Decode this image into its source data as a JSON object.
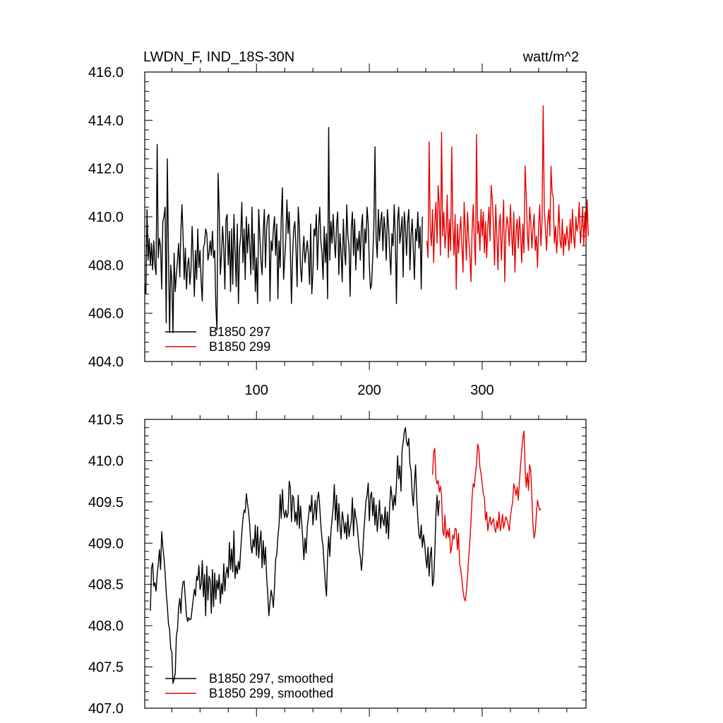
{
  "chart_data": [
    {
      "type": "line",
      "title": "LWDN_F, IND_18S-30N",
      "units": "watt/m^2",
      "xlim": [
        1,
        392
      ],
      "ylim": [
        404.0,
        416.0
      ],
      "xticks": [
        100,
        200,
        300
      ],
      "yticks": [
        "404.0",
        "406.0",
        "408.0",
        "410.0",
        "412.0",
        "414.0",
        "416.0"
      ],
      "legend_position": "bottom-left",
      "series": [
        {
          "name": "B1850 297",
          "color": "#000000",
          "x_start": 1,
          "values": [
            407.2,
            406.8,
            410.3,
            408.2,
            409.1,
            408.0,
            408.9,
            407.8,
            409.0,
            408.0,
            407.6,
            413.0,
            408.3,
            409.1,
            408.8,
            407.0,
            409.8,
            410.0,
            410.4,
            405.6,
            412.4,
            408.5,
            405.2,
            408.0,
            407.3,
            405.2,
            408.5,
            406.9,
            407.6,
            408.2,
            408.9,
            407.5,
            409.4,
            410.5,
            409.2,
            407.4,
            408.7,
            407.0,
            408.0,
            408.3,
            407.2,
            407.8,
            409.6,
            408.3,
            406.7,
            408.6,
            407.4,
            409.5,
            407.9,
            408.6,
            407.3,
            406.5,
            408.7,
            408.9,
            409.5,
            409.3,
            408.2,
            408.5,
            409.0,
            408.4,
            409.4,
            408.3,
            408.6,
            406.3,
            405.3,
            411.8,
            410.2,
            407.6,
            408.4,
            409.6,
            408.7,
            407.0,
            409.9,
            410.1,
            408.0,
            409.4,
            406.9,
            409.5,
            407.2,
            410.1,
            408.6,
            407.1,
            409.7,
            406.4,
            408.7,
            409.2,
            410.6,
            408.1,
            409.5,
            407.4,
            410.0,
            408.5,
            409.7,
            408.8,
            407.6,
            410.4,
            407.8,
            409.3,
            406.9,
            408.3,
            406.4,
            410.3,
            409.2,
            408.2,
            407.6,
            409.4,
            410.3,
            407.9,
            409.5,
            410.0,
            410.1,
            406.5,
            409.0,
            408.6,
            409.5,
            410.0,
            408.4,
            409.7,
            406.6,
            409.0,
            407.9,
            410.0,
            411.2,
            407.4,
            408.2,
            409.1,
            410.7,
            409.3,
            410.2,
            408.6,
            406.4,
            408.4,
            409.5,
            409.8,
            408.7,
            407.1,
            410.4,
            409.6,
            407.9,
            407.3,
            408.5,
            409.2,
            408.1,
            408.6,
            409.0,
            408.4,
            407.2,
            409.7,
            406.8,
            407.7,
            409.5,
            409.2,
            410.1,
            407.8,
            409.5,
            410.4,
            409.0,
            408.5,
            407.4,
            409.6,
            408.1,
            409.3,
            406.6,
            413.7,
            408.2,
            409.8,
            408.9,
            410.1,
            409.0,
            408.3,
            409.7,
            410.2,
            407.6,
            409.3,
            408.5,
            407.3,
            409.9,
            408.6,
            408.0,
            410.5,
            409.2,
            408.8,
            406.7,
            409.5,
            410.2,
            408.4,
            409.9,
            407.8,
            409.1,
            408.6,
            409.4,
            408.2,
            409.6,
            410.1,
            407.4,
            409.5,
            408.9,
            410.4,
            409.7,
            408.0,
            407.0,
            407.2,
            408.3,
            409.6,
            412.9,
            409.1,
            408.3,
            410.3,
            409.0,
            409.8,
            410.2,
            408.6,
            410.0,
            409.4,
            408.2,
            410.3,
            409.6,
            408.5,
            407.6,
            409.3,
            408.8,
            410.5,
            409.1,
            406.4,
            409.8,
            410.4,
            408.9,
            409.4,
            410.0,
            407.5,
            410.2,
            409.6,
            408.4,
            409.8,
            410.3,
            407.8,
            409.2,
            409.9,
            408.6,
            407.4,
            409.5,
            409.0,
            410.2,
            408.7,
            409.6,
            407.0,
            410.0
          ],
          "name_short": "B1850 297"
        },
        {
          "name": "B1850 299",
          "color": "#e60000",
          "x_start": 251,
          "values": [
            409.0,
            408.3,
            413.1,
            409.5,
            408.8,
            410.3,
            408.1,
            409.7,
            410.6,
            408.9,
            411.3,
            410.5,
            408.4,
            413.5,
            409.2,
            410.2,
            408.7,
            409.4,
            410.9,
            408.3,
            409.9,
            408.6,
            412.9,
            409.6,
            408.4,
            410.1,
            407.0,
            409.7,
            408.5,
            409.3,
            410.0,
            408.8,
            407.7,
            410.6,
            409.4,
            408.2,
            410.2,
            409.1,
            408.5,
            407.3,
            409.4,
            410.5,
            409.0,
            408.0,
            413.4,
            409.3,
            409.8,
            408.6,
            410.3,
            409.2,
            410.2,
            408.5,
            409.8,
            408.3,
            409.6,
            410.4,
            409.0,
            411.3,
            410.7,
            409.6,
            408.0,
            410.5,
            409.2,
            407.8,
            409.6,
            410.1,
            408.2,
            409.4,
            410.7,
            407.3,
            409.4,
            410.0,
            409.6,
            408.8,
            410.5,
            409.3,
            408.4,
            410.2,
            407.7,
            409.4,
            409.9,
            408.7,
            410.0,
            409.3,
            408.1,
            409.7,
            408.5,
            412.1,
            410.9,
            409.3,
            408.6,
            410.4,
            409.8,
            408.7,
            409.5,
            410.1,
            408.6,
            409.2,
            407.9,
            409.6,
            410.5,
            408.8,
            409.8,
            414.6,
            410.3,
            409.5,
            408.6,
            409.8,
            410.3,
            409.2,
            412.1,
            411.0,
            410.8,
            408.9,
            409.6,
            408.5,
            409.3,
            410.5,
            409.0,
            408.7,
            409.9,
            408.4,
            409.3,
            408.8,
            409.6,
            409.1,
            408.6,
            409.9,
            408.9,
            410.3,
            409.2,
            408.7,
            410.0,
            409.4,
            409.7,
            410.6,
            408.9,
            409.5,
            410.4,
            408.8,
            410.2,
            409.0,
            410.7,
            409.2
          ]
        }
      ]
    },
    {
      "type": "line",
      "title": "",
      "xlim": [
        1,
        392
      ],
      "ylim": [
        407.0,
        410.5
      ],
      "xticks": [
        100,
        200,
        300
      ],
      "yticks": [
        "407.0",
        "407.5",
        "408.0",
        "408.5",
        "409.0",
        "409.5",
        "410.0",
        "410.5"
      ],
      "legend_position": "bottom-left",
      "series": [
        {
          "name": "B1850 297, smoothed",
          "color": "#000000",
          "x_start": 6,
          "values": [
            408.18,
            408.7,
            408.76,
            408.48,
            408.52,
            408.42,
            408.62,
            408.75,
            408.92,
            408.68,
            409.14,
            408.95,
            408.82,
            408.65,
            408.4,
            408.24,
            408.02,
            407.95,
            407.72,
            407.68,
            407.3,
            407.35,
            407.42,
            407.88,
            407.96,
            408.22,
            408.33,
            408.15,
            408.42,
            408.53,
            408.54,
            408.32,
            408.12,
            408.05,
            408.1,
            408.07,
            408.08,
            408.2,
            408.32,
            408.44,
            408.36,
            408.6,
            408.55,
            408.73,
            408.44,
            408.5,
            408.79,
            408.35,
            408.62,
            408.12,
            408.72,
            408.31,
            408.6,
            408.55,
            408.15,
            408.68,
            408.23,
            408.64,
            408.32,
            408.55,
            408.44,
            408.62,
            408.27,
            408.51,
            408.38,
            408.75,
            408.42,
            408.63,
            408.71,
            408.58,
            409.01,
            408.68,
            408.93,
            408.65,
            409.15,
            408.57,
            408.73,
            408.63,
            408.78,
            408.68,
            408.92,
            409.12,
            409.3,
            409.4,
            409.37,
            409.6,
            409.48,
            409.38,
            409.22,
            408.98,
            408.88,
            409.05,
            408.95,
            409.22,
            408.85,
            409.2,
            408.82,
            409.02,
            409.15,
            408.7,
            409.03,
            408.74,
            408.95,
            408.6,
            408.38,
            408.12,
            408.28,
            408.43,
            408.35,
            408.22,
            408.48,
            408.81,
            408.86,
            409.08,
            409.22,
            409.59,
            409.3,
            409.65,
            409.39,
            409.31,
            409.4,
            409.31,
            409.36,
            409.75,
            409.68,
            409.26,
            409.58,
            409.54,
            409.26,
            409.38,
            409.22,
            409.58,
            409.18,
            409.45,
            409.26,
            409.05,
            408.8,
            409.06,
            408.88,
            409.2,
            409.3,
            409.46,
            409.38,
            409.58,
            409.22,
            409.37,
            409.52,
            409.28,
            409.54,
            409.62,
            409.45,
            409.22,
            409.05,
            408.96,
            408.72,
            408.51,
            408.36,
            408.85,
            409.08,
            408.84,
            409.14,
            409.29,
            409.44,
            409.71,
            409.28,
            409.58,
            409.14,
            409.48,
            409.22,
            409.05,
            409.38,
            409.29,
            409.12,
            409.25,
            409.05,
            409.35,
            409.08,
            409.18,
            409.27,
            409.55,
            409.09,
            409.42,
            409.32,
            409.24,
            409.09,
            408.92,
            408.84,
            408.67,
            408.84,
            409.12,
            409.3,
            409.51,
            409.58,
            409.73,
            409.27,
            409.57,
            409.62,
            409.33,
            409.55,
            409.22,
            409.46,
            409.14,
            409.31,
            409.52,
            409.18,
            409.35,
            409.28,
            409.21,
            409.44,
            409.12,
            409.38,
            409.05,
            409.45,
            409.69,
            409.56,
            409.4,
            409.58,
            409.46,
            409.72,
            410.06,
            409.78,
            409.94,
            409.63,
            410.13,
            410.22,
            410.35,
            410.4,
            410.22,
            410.18,
            410.27,
            409.95,
            409.88,
            409.6,
            409.45,
            409.72,
            409.95,
            409.54,
            409.3,
            409.1,
            409.05,
            409.22,
            408.95,
            409.1,
            409.0,
            408.82,
            408.7,
            408.95,
            408.6,
            408.85,
            408.95,
            408.48,
            408.55,
            408.88,
            409.35,
            409.58,
            409.33,
            409.52
          ]
        },
        {
          "name": "B1850 299, smoothed",
          "color": "#e60000",
          "x_start": 256,
          "values": [
            409.83,
            410.1,
            410.15,
            409.78,
            409.72,
            409.76,
            409.62,
            409.69,
            409.58,
            409.15,
            409.09,
            409.34,
            409.06,
            409.16,
            409.07,
            409.18,
            408.88,
            408.95,
            409.1,
            409.05,
            409.18,
            409.17,
            408.92,
            409.12,
            408.75,
            408.68,
            408.56,
            408.42,
            408.33,
            408.3,
            408.42,
            408.6,
            408.82,
            409.02,
            409.25,
            409.55,
            409.72,
            409.68,
            409.85,
            409.95,
            410.2,
            410.15,
            409.92,
            409.85,
            409.72,
            409.6,
            409.55,
            409.28,
            409.38,
            409.15,
            409.25,
            409.32,
            409.22,
            409.26,
            409.3,
            409.18,
            409.13,
            409.27,
            409.18,
            409.38,
            409.15,
            409.22,
            409.35,
            409.18,
            409.25,
            409.32,
            409.28,
            409.22,
            409.15,
            409.32,
            409.42,
            409.5,
            409.72,
            409.66,
            409.58,
            409.68,
            409.52,
            409.75,
            409.95,
            410.12,
            410.27,
            410.36,
            409.92,
            409.68,
            409.85,
            409.64,
            409.95,
            409.89,
            409.55,
            409.22,
            409.06,
            409.14,
            409.35,
            409.52,
            409.45,
            409.4,
            409.42
          ]
        }
      ]
    }
  ]
}
